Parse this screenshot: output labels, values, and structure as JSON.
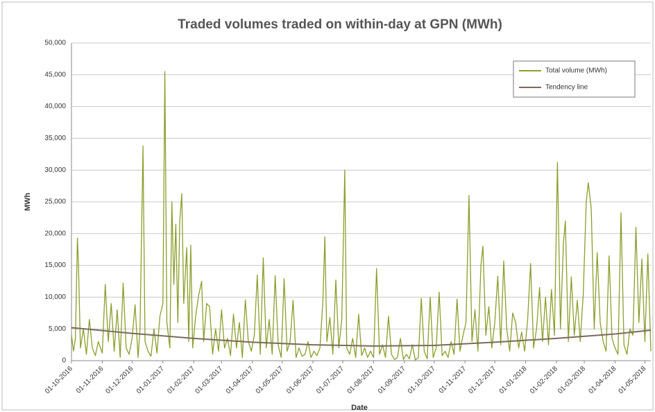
{
  "chart_data": {
    "type": "line",
    "title": "Traded volumes traded on within-day at GPN (MWh)",
    "xlabel": "Date",
    "ylabel": "MWh",
    "xlim": [
      "01-10-2016",
      "07-05-2018"
    ],
    "xticks": [
      "01-10-2016",
      "01-11-2016",
      "01-12-2016",
      "01-01-2017",
      "01-02-2017",
      "01-03-2017",
      "01-04-2017",
      "01-05-2017",
      "01-06-2017",
      "01-07-2017",
      "01-08-2017",
      "01-09-2017",
      "01-10-2017",
      "01-11-2017",
      "01-12-2017",
      "01-01-2018",
      "01-02-2018",
      "01-03-2018",
      "01-04-2018",
      "01-05-2018"
    ],
    "ylim": [
      0,
      50000
    ],
    "yticks": [
      0,
      {
        "value": 5000,
        "label": "5,000"
      },
      {
        "value": 10000,
        "label": "10,000"
      },
      {
        "value": 15000,
        "label": "15,000"
      },
      {
        "value": 20000,
        "label": "20,000"
      },
      {
        "value": 25000,
        "label": "25,000"
      },
      {
        "value": 30000,
        "label": "30,000"
      },
      {
        "value": 35000,
        "label": "35,000"
      },
      {
        "value": 40000,
        "label": "40,000"
      },
      {
        "value": 45000,
        "label": "45,000"
      },
      {
        "value": 50000,
        "label": "50,000"
      }
    ],
    "grid": true,
    "legend": "top-right",
    "series": [
      {
        "name": "Total volume (MWh)",
        "color": "#8c9d2b",
        "x": [
          "01-10-2016",
          "03-10-2016",
          "05-10-2016",
          "07-10-2016",
          "08-10-2016",
          "10-10-2016",
          "13-10-2016",
          "16-10-2016",
          "19-10-2016",
          "22-10-2016",
          "25-10-2016",
          "28-10-2016",
          "01-11-2016",
          "04-11-2016",
          "07-11-2016",
          "10-11-2016",
          "13-11-2016",
          "16-11-2016",
          "19-11-2016",
          "22-11-2016",
          "25-11-2016",
          "28-11-2016",
          "01-12-2016",
          "04-12-2016",
          "07-12-2016",
          "09-12-2016",
          "12-12-2016",
          "14-12-2016",
          "17-12-2016",
          "20-12-2016",
          "23-12-2016",
          "26-12-2016",
          "29-12-2016",
          "01-01-2017",
          "03-01-2017",
          "05-01-2017",
          "08-01-2017",
          "10-01-2017",
          "12-01-2017",
          "14-01-2017",
          "16-01-2017",
          "18-01-2017",
          "20-01-2017",
          "22-01-2017",
          "25-01-2017",
          "27-01-2017",
          "29-01-2017",
          "31-01-2017",
          "03-02-2017",
          "06-02-2017",
          "09-02-2017",
          "11-02-2017",
          "14-02-2017",
          "17-02-2017",
          "20-02-2017",
          "23-02-2017",
          "26-02-2017",
          "01-03-2017",
          "04-03-2017",
          "07-03-2017",
          "10-03-2017",
          "13-03-2017",
          "16-03-2017",
          "19-03-2017",
          "22-03-2017",
          "25-03-2017",
          "28-03-2017",
          "31-03-2017",
          "03-04-2017",
          "06-04-2017",
          "09-04-2017",
          "12-04-2017",
          "15-04-2017",
          "18-04-2017",
          "21-04-2017",
          "24-04-2017",
          "27-04-2017",
          "30-04-2017",
          "03-05-2017",
          "06-05-2017",
          "09-05-2017",
          "12-05-2017",
          "15-05-2017",
          "18-05-2017",
          "21-05-2017",
          "24-05-2017",
          "27-05-2017",
          "30-05-2017",
          "02-06-2017",
          "05-06-2017",
          "08-06-2017",
          "11-06-2017",
          "13-06-2017",
          "15-06-2017",
          "18-06-2017",
          "21-06-2017",
          "24-06-2017",
          "27-06-2017",
          "30-06-2017",
          "03-07-2017",
          "05-07-2017",
          "08-07-2017",
          "11-07-2017",
          "14-07-2017",
          "17-07-2017",
          "20-07-2017",
          "23-07-2017",
          "26-07-2017",
          "29-07-2017",
          "01-08-2017",
          "04-08-2017",
          "07-08-2017",
          "10-08-2017",
          "13-08-2017",
          "16-08-2017",
          "19-08-2017",
          "22-08-2017",
          "25-08-2017",
          "28-08-2017",
          "31-08-2017",
          "03-09-2017",
          "06-09-2017",
          "09-09-2017",
          "12-09-2017",
          "15-09-2017",
          "18-09-2017",
          "21-09-2017",
          "24-09-2017",
          "27-09-2017",
          "30-09-2017",
          "03-10-2017",
          "06-10-2017",
          "09-10-2017",
          "12-10-2017",
          "15-10-2017",
          "18-10-2017",
          "21-10-2017",
          "24-10-2017",
          "27-10-2017",
          "30-10-2017",
          "02-11-2017",
          "05-11-2017",
          "08-11-2017",
          "11-11-2017",
          "14-11-2017",
          "17-11-2017",
          "19-11-2017",
          "22-11-2017",
          "25-11-2017",
          "28-11-2017",
          "01-12-2017",
          "04-12-2017",
          "07-12-2017",
          "10-12-2017",
          "13-12-2017",
          "16-12-2017",
          "19-12-2017",
          "22-12-2017",
          "25-12-2017",
          "28-12-2017",
          "31-12-2017",
          "03-01-2018",
          "06-01-2018",
          "09-01-2018",
          "12-01-2018",
          "15-01-2018",
          "18-01-2018",
          "21-01-2018",
          "24-01-2018",
          "27-01-2018",
          "30-01-2018",
          "02-02-2018",
          "05-02-2018",
          "08-02-2018",
          "10-02-2018",
          "13-02-2018",
          "16-02-2018",
          "19-02-2018",
          "22-02-2018",
          "25-02-2018",
          "28-02-2018",
          "03-03-2018",
          "05-03-2018",
          "08-03-2018",
          "11-03-2018",
          "14-03-2018",
          "17-03-2018",
          "20-03-2018",
          "23-03-2018",
          "26-03-2018",
          "29-03-2018",
          "01-04-2018",
          "04-04-2018",
          "07-04-2018",
          "10-04-2018",
          "13-04-2018",
          "16-04-2018",
          "19-04-2018",
          "22-04-2018",
          "25-04-2018",
          "28-04-2018",
          "01-05-2018",
          "04-05-2018",
          "07-05-2018"
        ],
        "values": [
          4000,
          1500,
          3500,
          19300,
          15500,
          2000,
          5000,
          1000,
          6500,
          2000,
          800,
          3000,
          1200,
          12000,
          3000,
          9000,
          1500,
          8000,
          500,
          12200,
          2000,
          1000,
          3500,
          8800,
          500,
          5000,
          33800,
          3000,
          1500,
          700,
          5000,
          1200,
          7000,
          9000,
          45500,
          6000,
          2000,
          25000,
          12000,
          21500,
          6000,
          22000,
          26300,
          9000,
          17800,
          3000,
          18200,
          2000,
          7000,
          10300,
          12500,
          3000,
          9000,
          8500,
          1000,
          5000,
          1500,
          8000,
          2000,
          3500,
          800,
          7300,
          2000,
          6000,
          500,
          9600,
          3000,
          1500,
          4000,
          13500,
          1000,
          16200,
          2000,
          6500,
          1000,
          13400,
          2500,
          500,
          12900,
          1500,
          3000,
          9500,
          500,
          2000,
          700,
          1000,
          3000,
          500,
          1500,
          800,
          2000,
          9500,
          19500,
          3000,
          6800,
          1000,
          12700,
          2000,
          6500,
          30000,
          2000,
          1000,
          3500,
          500,
          7300,
          800,
          2000,
          500,
          1500,
          500,
          14500,
          1000,
          2500,
          500,
          7000,
          1000,
          200,
          500,
          3500,
          200,
          1000,
          300,
          2500,
          100,
          500,
          9800,
          1500,
          300,
          10000,
          500,
          2000,
          10800,
          800,
          1500,
          500,
          3000,
          1000,
          9700,
          1500,
          4000,
          6000,
          26000,
          3000,
          8000,
          1500,
          15000,
          18000,
          4000,
          8500,
          2000,
          6000,
          13300,
          2500,
          15700,
          5000,
          1500,
          7500,
          6000,
          2000,
          4500,
          1500,
          6300,
          15300,
          2000,
          5000,
          11500,
          3000,
          10000,
          2500,
          11200,
          4000,
          31200,
          5000,
          18500,
          22000,
          3000,
          13200,
          4000,
          9500,
          3000,
          10500,
          25000,
          28000,
          24000,
          5000,
          17000,
          6000,
          3000,
          1500,
          16500,
          3500,
          2000,
          1000,
          23300,
          2500,
          1000,
          5000,
          4000,
          21000,
          6000,
          16000,
          3000,
          16800,
          1500
        ]
      },
      {
        "name": "Tendency line",
        "color": "#7a6a5a",
        "x": [
          "01-10-2016",
          "01-12-2016",
          "01-02-2017",
          "01-04-2017",
          "01-06-2017",
          "01-08-2017",
          "01-10-2017",
          "01-12-2017",
          "01-02-2018",
          "01-04-2018",
          "07-05-2018"
        ],
        "values": [
          5200,
          4300,
          3500,
          2900,
          2500,
          2300,
          2400,
          2900,
          3500,
          4200,
          4800
        ]
      }
    ]
  }
}
